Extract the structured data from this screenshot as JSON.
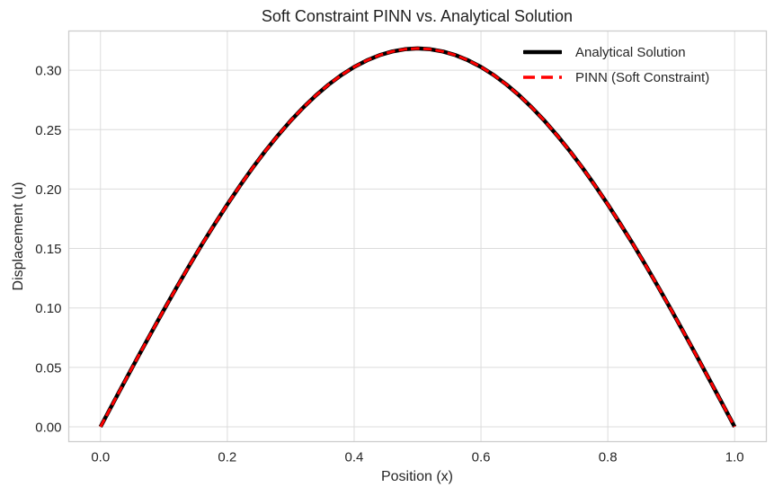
{
  "theme": {
    "background": "#ffffff",
    "grid_color": "#dcdcdc",
    "spine_color": "#cccccc",
    "text_color": "#262626",
    "analytical_color": "#000000",
    "pinn_color": "#ff0000"
  },
  "chart_data": {
    "type": "line",
    "title": "Soft Constraint PINN vs. Analytical Solution",
    "xlabel": "Position (x)",
    "ylabel": "Displacement (u)",
    "grid": true,
    "legend_position": "upper right",
    "xlim": [
      -0.05,
      1.05
    ],
    "ylim": [
      -0.0125,
      0.333
    ],
    "xticks": [
      0.0,
      0.2,
      0.4,
      0.6,
      0.8,
      1.0
    ],
    "xtick_labels": [
      "0.0",
      "0.2",
      "0.4",
      "0.6",
      "0.8",
      "1.0"
    ],
    "yticks": [
      0.0,
      0.05,
      0.1,
      0.15,
      0.2,
      0.25,
      0.3
    ],
    "ytick_labels": [
      "0.00",
      "0.05",
      "0.10",
      "0.15",
      "0.20",
      "0.25",
      "0.30"
    ],
    "peak": {
      "x": 0.5,
      "y": 0.3183
    },
    "x": [
      0.0,
      0.02,
      0.04,
      0.06,
      0.08,
      0.1,
      0.12,
      0.14,
      0.16,
      0.18,
      0.2,
      0.22,
      0.24,
      0.26,
      0.28,
      0.3,
      0.32,
      0.34,
      0.36,
      0.38,
      0.4,
      0.42,
      0.44,
      0.46,
      0.48,
      0.5,
      0.52,
      0.54,
      0.56,
      0.58,
      0.6,
      0.62,
      0.64,
      0.66,
      0.68,
      0.7,
      0.72,
      0.74,
      0.76,
      0.78,
      0.8,
      0.82,
      0.84,
      0.86,
      0.88,
      0.9,
      0.92,
      0.94,
      0.96,
      0.98,
      1.0
    ],
    "series": [
      {
        "name": "Analytical Solution",
        "color": "#000000",
        "linestyle": "solid",
        "linewidth": 4.5,
        "values": [
          0.0,
          0.01999,
          0.0399,
          0.05965,
          0.07916,
          0.09836,
          0.11718,
          0.13553,
          0.15335,
          0.17056,
          0.1871,
          0.2029,
          0.2179,
          0.23204,
          0.24526,
          0.25752,
          0.26876,
          0.27894,
          0.28801,
          0.29596,
          0.30273,
          0.30831,
          0.31267,
          0.3158,
          0.31768,
          0.31831,
          0.31768,
          0.3158,
          0.31267,
          0.30831,
          0.30273,
          0.29596,
          0.28801,
          0.27894,
          0.26876,
          0.25752,
          0.24526,
          0.23204,
          0.2179,
          0.2029,
          0.1871,
          0.17056,
          0.15335,
          0.13553,
          0.11718,
          0.09836,
          0.07916,
          0.05965,
          0.0399,
          0.01999,
          0.0
        ]
      },
      {
        "name": "PINN (Soft Constraint)",
        "color": "#ff0000",
        "linestyle": "dashed",
        "linewidth": 3,
        "values": [
          0.0,
          0.01999,
          0.0399,
          0.05965,
          0.07916,
          0.09836,
          0.11718,
          0.13553,
          0.15335,
          0.17056,
          0.1871,
          0.2029,
          0.2179,
          0.23204,
          0.24526,
          0.25752,
          0.26876,
          0.27894,
          0.28801,
          0.29596,
          0.30273,
          0.30831,
          0.31267,
          0.3158,
          0.31768,
          0.31831,
          0.31768,
          0.3158,
          0.31267,
          0.30831,
          0.30273,
          0.29596,
          0.28801,
          0.27894,
          0.26876,
          0.25752,
          0.24526,
          0.23204,
          0.2179,
          0.2029,
          0.1871,
          0.17056,
          0.15335,
          0.13553,
          0.11718,
          0.09836,
          0.07916,
          0.05965,
          0.0399,
          0.01999,
          0.0
        ]
      }
    ]
  }
}
